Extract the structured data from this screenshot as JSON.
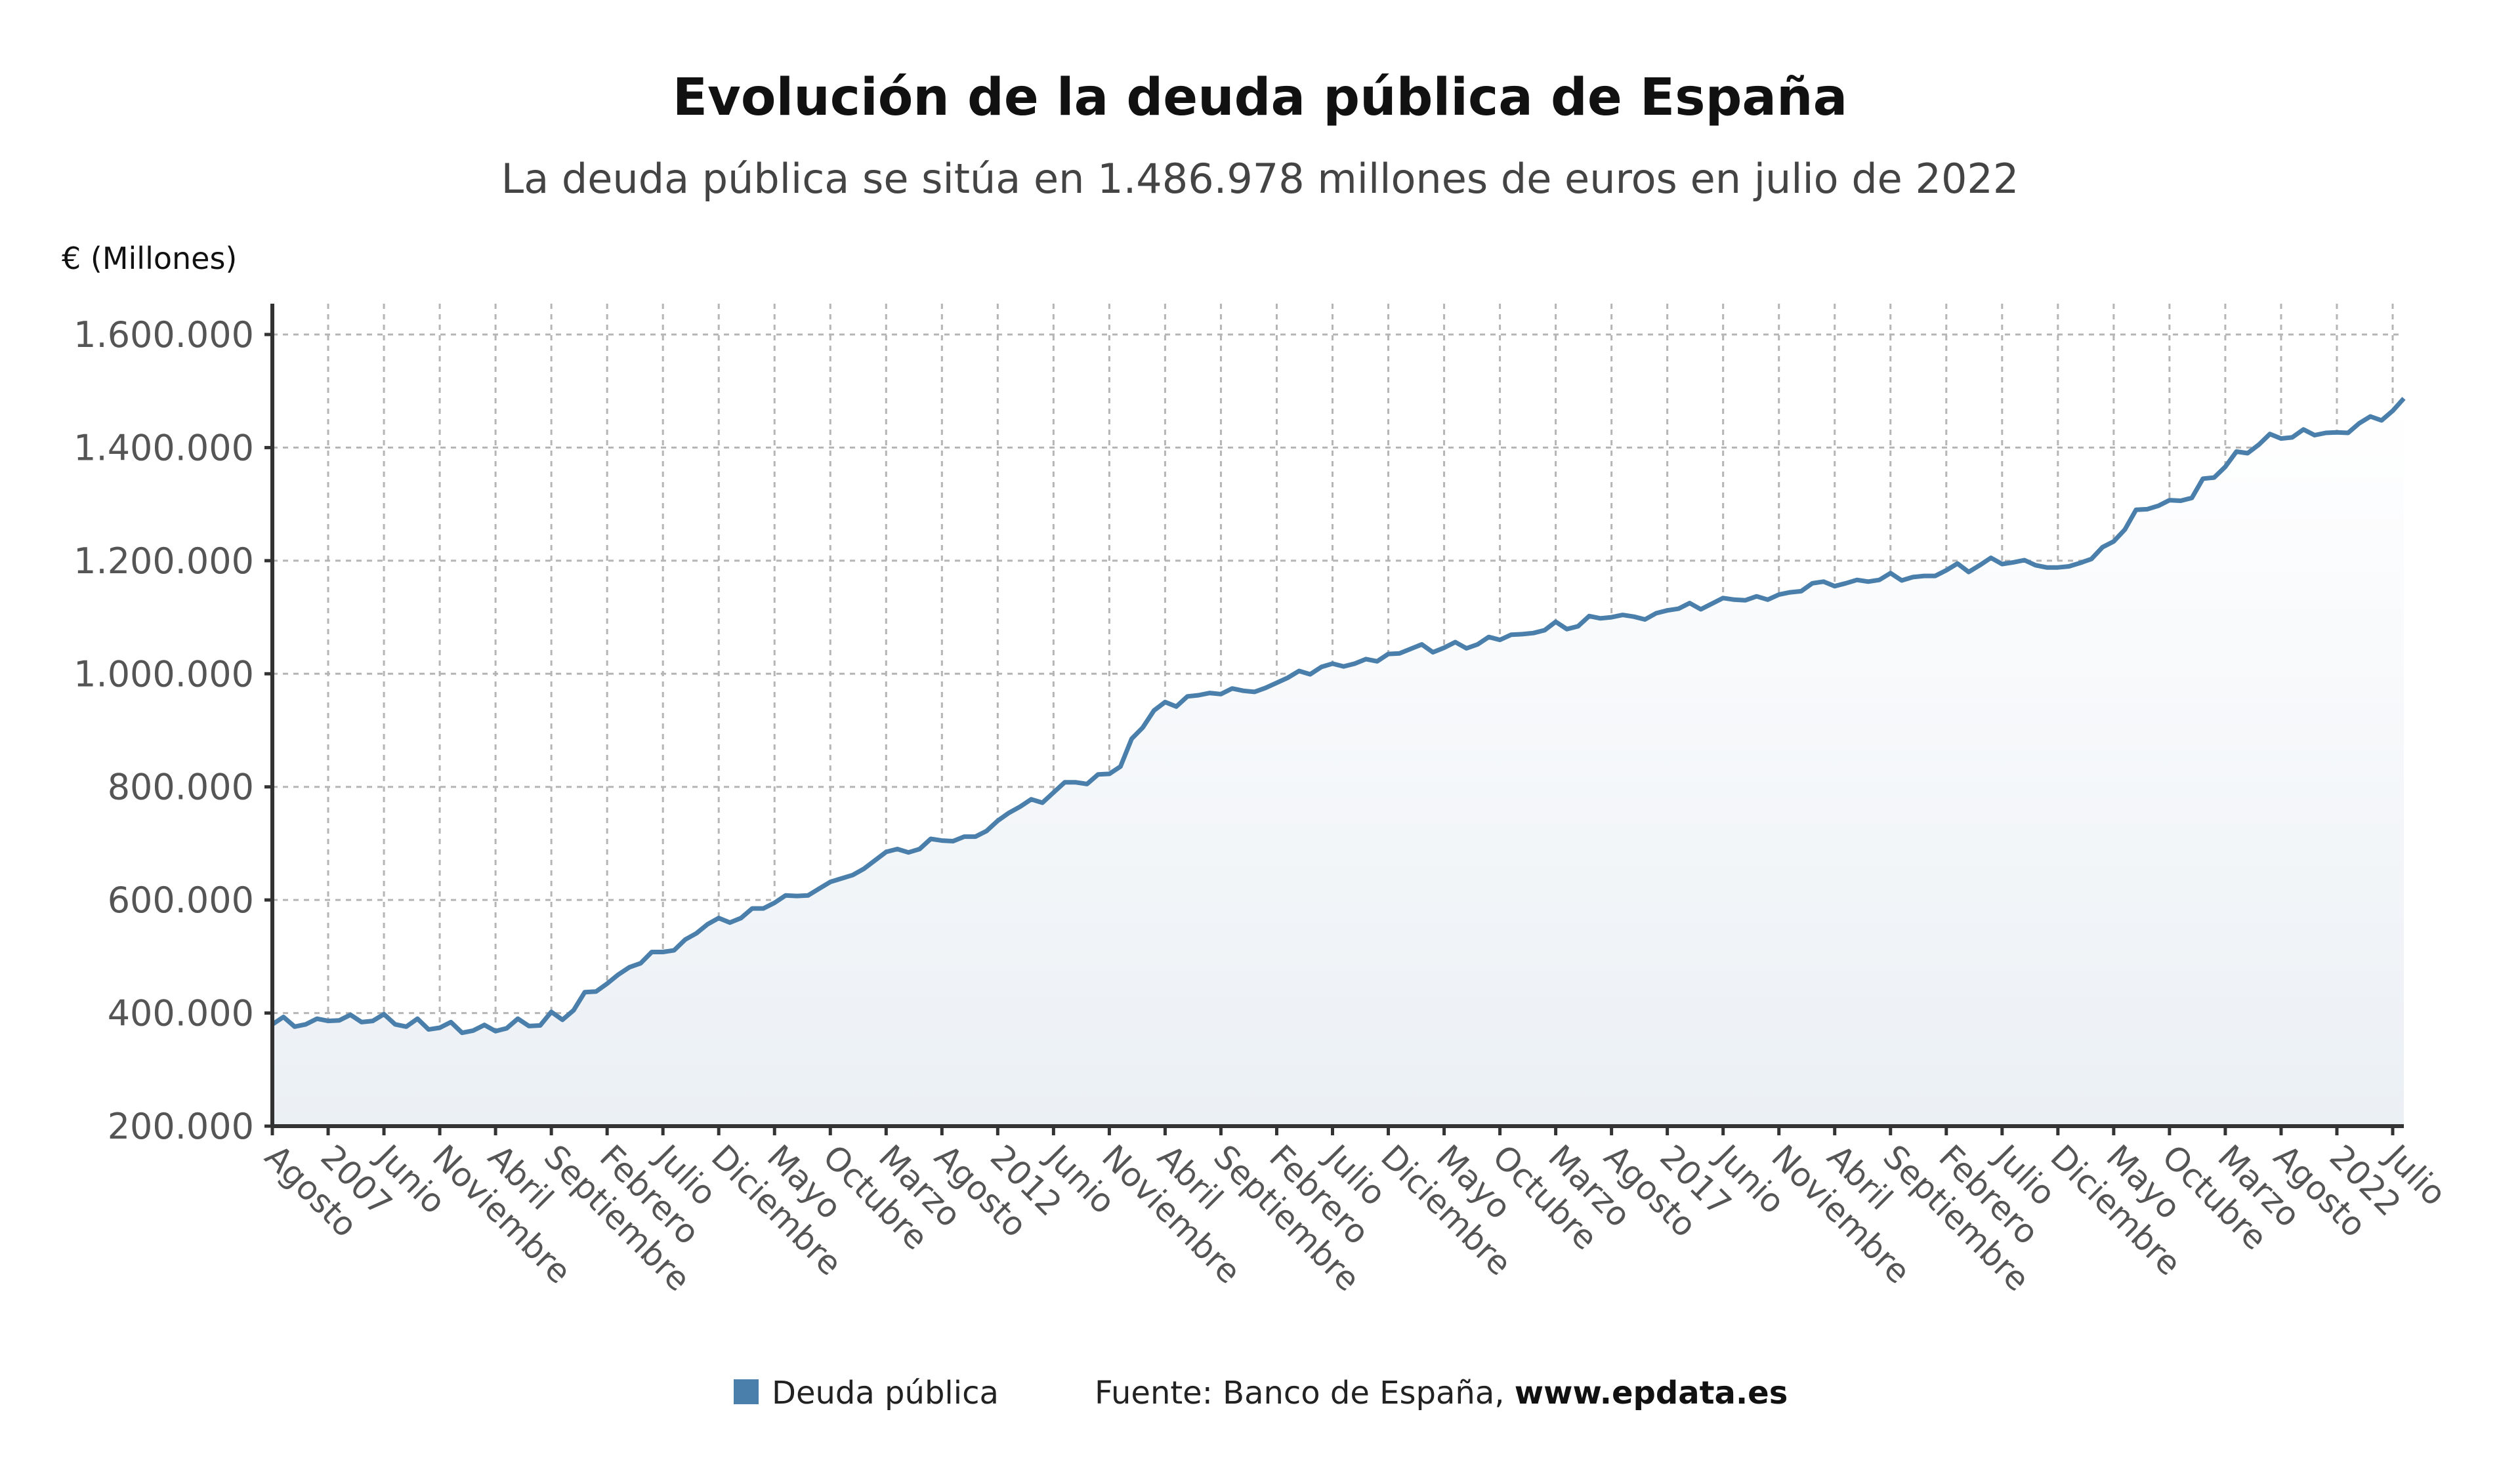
{
  "colors": {
    "line": "#4a7fab",
    "fill_top": "#ffffff",
    "fill_bottom": "#ebf0f5",
    "grid": "#b5b5b5",
    "axis": "#333333"
  },
  "chart_data": {
    "type": "area",
    "title": "Evolución de la deuda pública de España",
    "subtitle": "La deuda pública se sitúa en 1.486.978 millones de euros en julio de 2022",
    "ylabel": "€ (Millones)",
    "xlabel": "",
    "ylim": [
      200000,
      1600000
    ],
    "yticks": [
      200000,
      400000,
      600000,
      800000,
      1000000,
      1200000,
      1400000,
      1600000
    ],
    "ytick_labels": [
      "200.000",
      "400.000",
      "600.000",
      "800.000",
      "1.000.000",
      "1.200.000",
      "1.400.000",
      "1.600.000"
    ],
    "x_start": "2006-08",
    "x_end": "2022-07",
    "x_frequency": "monthly",
    "xtick_step_months": 5,
    "xtick_labels": [
      "Agosto",
      "2007",
      "Junio",
      "Noviembre",
      "Abril",
      "Septiembre",
      "Febrero",
      "Julio",
      "Diciembre",
      "Mayo",
      "Octubre",
      "Marzo",
      "Agosto",
      "2012",
      "Junio",
      "Noviembre",
      "Abril",
      "Septiembre",
      "Febrero",
      "Julio",
      "Diciembre",
      "Mayo",
      "Octubre",
      "Marzo",
      "Agosto",
      "2017",
      "Junio",
      "Noviembre",
      "Abril",
      "Septiembre",
      "Febrero",
      "Julio",
      "Diciembre",
      "Mayo",
      "Octubre",
      "Marzo",
      "Agosto",
      "2022",
      "Julio"
    ],
    "grid": true,
    "legend_position": "bottom",
    "series": [
      {
        "name": "Deuda pública",
        "values": [
          380000,
          393000,
          376000,
          380000,
          390000,
          386000,
          387000,
          397000,
          384000,
          386000,
          398000,
          380000,
          376000,
          390000,
          371000,
          374000,
          384000,
          365000,
          369000,
          379000,
          368000,
          373000,
          390000,
          377000,
          378000,
          402000,
          388000,
          405000,
          437000,
          438000,
          452000,
          468000,
          481000,
          488000,
          508000,
          508000,
          511000,
          530000,
          541000,
          557000,
          568000,
          560000,
          568000,
          585000,
          585000,
          595000,
          608000,
          607000,
          608000,
          620000,
          632000,
          638000,
          644000,
          655000,
          670000,
          685000,
          690000,
          684000,
          690000,
          708000,
          705000,
          704000,
          712000,
          712000,
          722000,
          740000,
          754000,
          765000,
          778000,
          772000,
          790000,
          808000,
          808000,
          805000,
          822000,
          823000,
          836000,
          885000,
          905000,
          935000,
          950000,
          942000,
          960000,
          962000,
          966000,
          964000,
          974000,
          970000,
          968000,
          975000,
          984000,
          993000,
          1005000,
          999000,
          1012000,
          1018000,
          1013000,
          1018000,
          1026000,
          1022000,
          1035000,
          1036000,
          1044000,
          1052000,
          1038000,
          1046000,
          1056000,
          1045000,
          1052000,
          1065000,
          1060000,
          1069000,
          1070000,
          1072000,
          1077000,
          1092000,
          1079000,
          1084000,
          1102000,
          1098000,
          1100000,
          1104000,
          1101000,
          1096000,
          1107000,
          1112000,
          1115000,
          1125000,
          1114000,
          1124000,
          1134000,
          1131000,
          1130000,
          1137000,
          1131000,
          1140000,
          1144000,
          1146000,
          1160000,
          1163000,
          1155000,
          1160000,
          1166000,
          1163000,
          1166000,
          1178000,
          1165000,
          1171000,
          1173000,
          1173000,
          1183000,
          1195000,
          1180000,
          1192000,
          1205000,
          1194000,
          1197000,
          1201000,
          1192000,
          1188000,
          1188000,
          1190000,
          1196000,
          1203000,
          1224000,
          1234000,
          1255000,
          1290000,
          1291000,
          1297000,
          1307000,
          1306000,
          1311000,
          1345000,
          1347000,
          1366000,
          1393000,
          1390000,
          1405000,
          1424000,
          1416000,
          1418000,
          1432000,
          1422000,
          1426000,
          1427000,
          1426000,
          1443000,
          1455000,
          1448000,
          1465000,
          1486978
        ]
      }
    ],
    "source": "Fuente: Banco de España, www.epdata.es",
    "source_prefix": "Fuente: Banco de España, ",
    "source_site": "www.epdata.es"
  }
}
